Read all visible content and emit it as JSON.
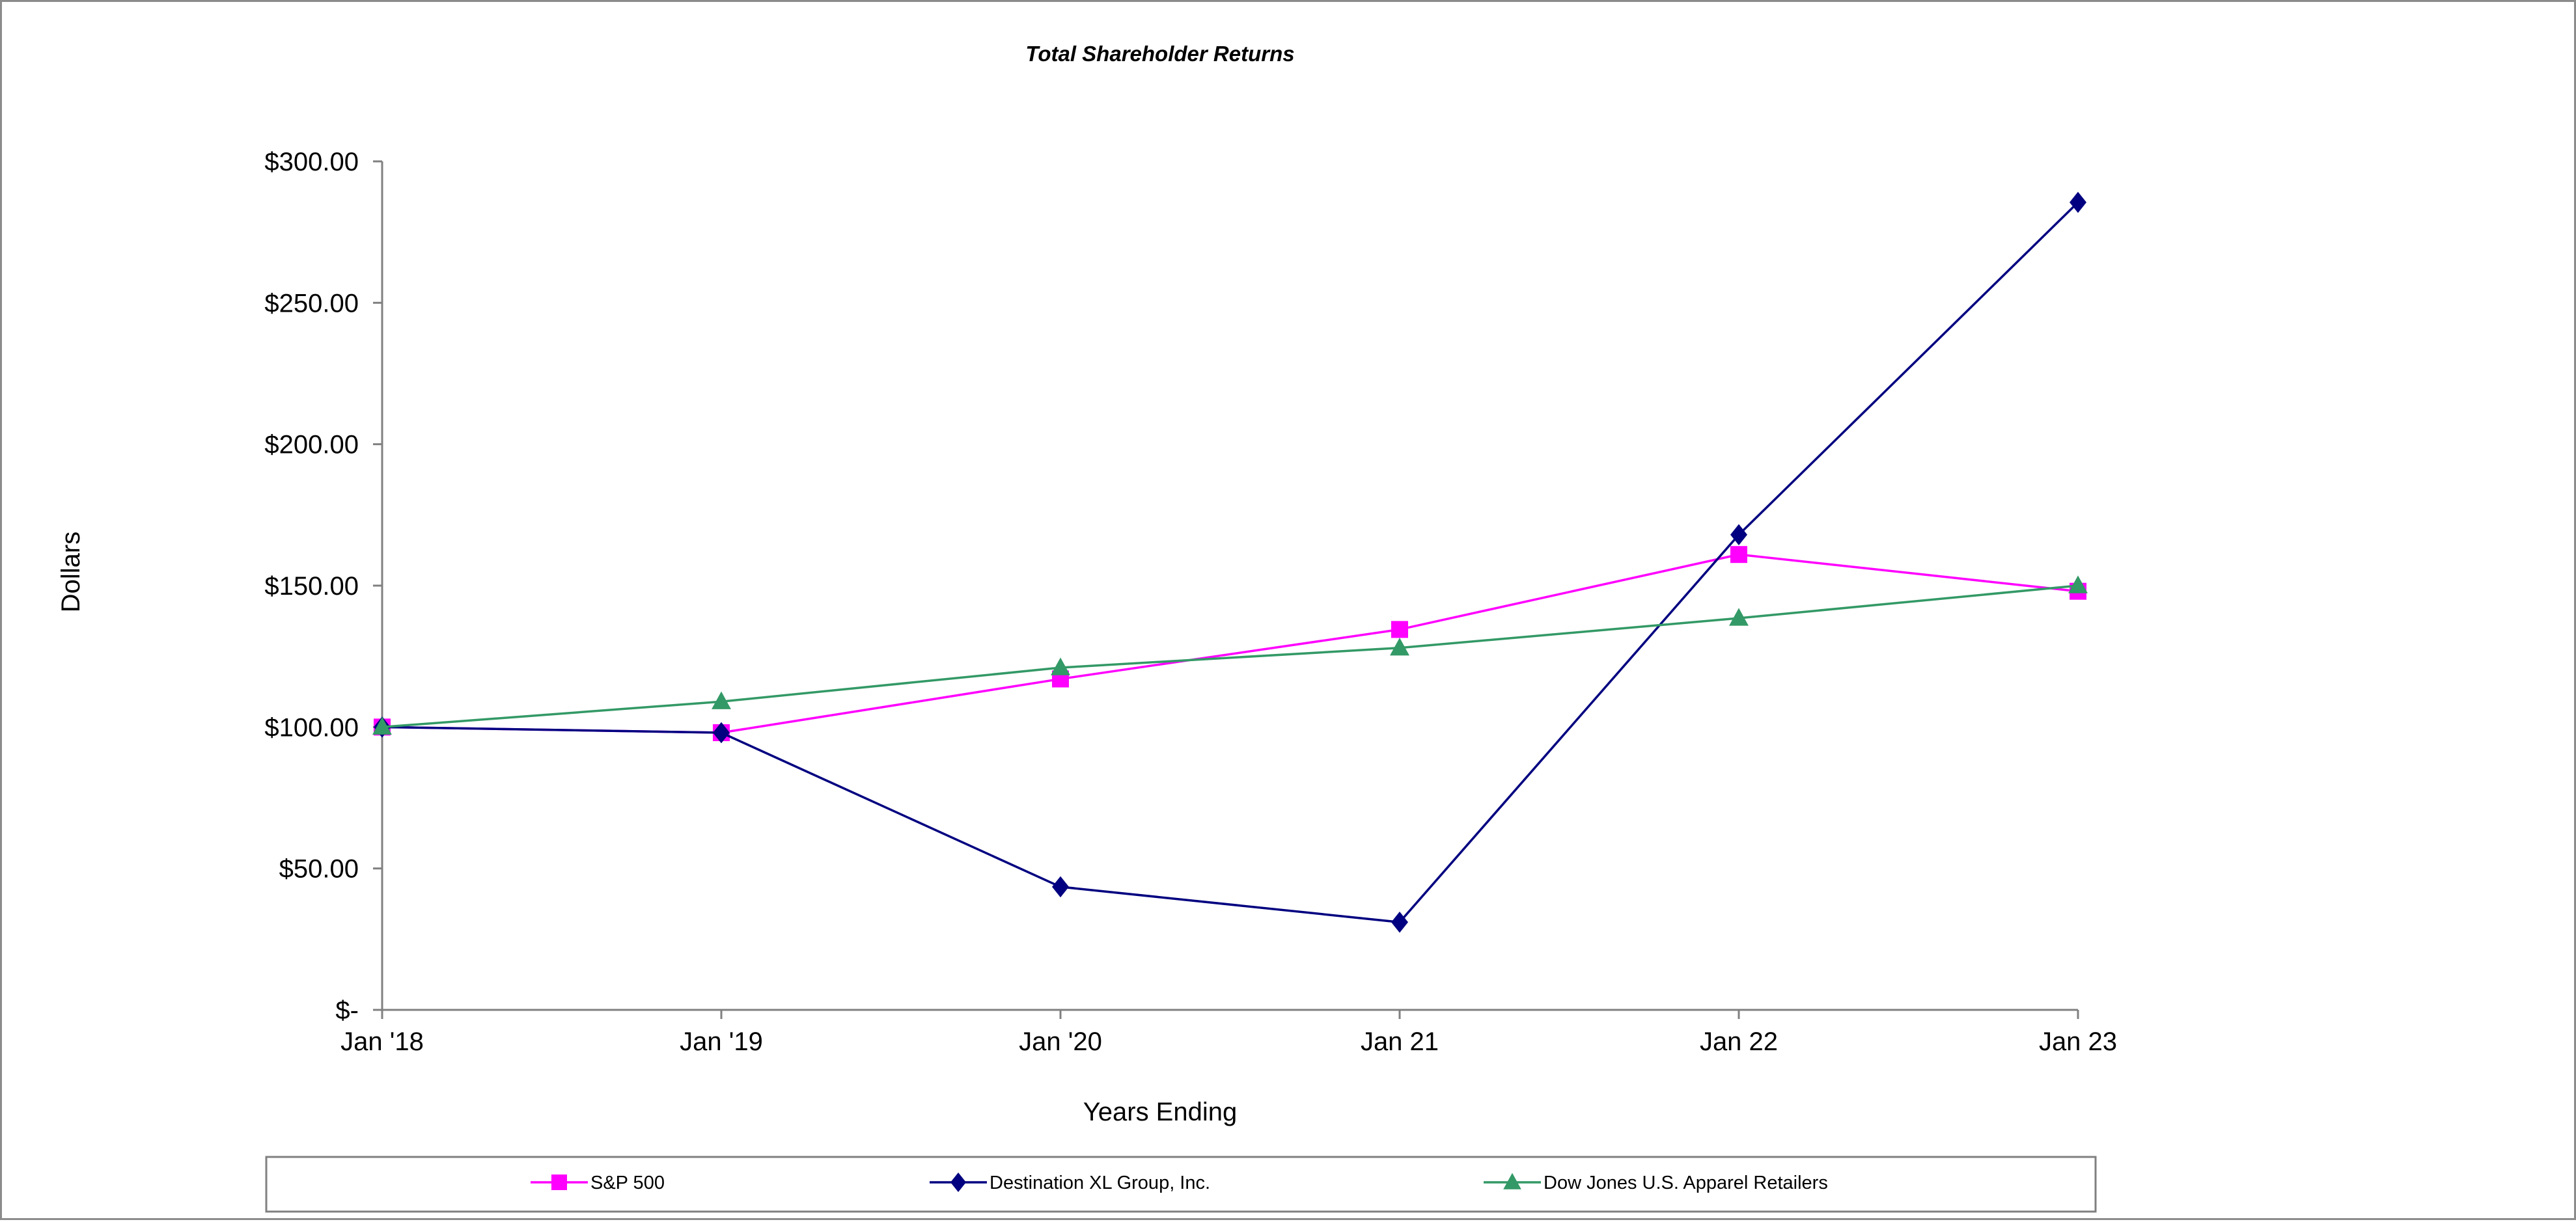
{
  "chart_data": {
    "type": "line",
    "title": "Total Shareholder Returns",
    "xlabel": "Years Ending",
    "ylabel": "Dollars",
    "categories": [
      "Jan '18",
      "Jan '19",
      "Jan '20",
      "Jan 21",
      "Jan 22",
      "Jan 23"
    ],
    "ylim": [
      0,
      300
    ],
    "y_ticks": [
      0,
      50,
      100,
      150,
      200,
      250,
      300
    ],
    "y_tick_labels": [
      "$-",
      "$50.00",
      "$100.00",
      "$150.00",
      "$200.00",
      "$250.00",
      "$300.00"
    ],
    "grid": false,
    "legend_position": "bottom",
    "series": [
      {
        "name": "S&P 500",
        "values": [
          100.0,
          98.0,
          117.0,
          134.5,
          161.0,
          148.0
        ],
        "color": "#ff00ff",
        "marker": "square"
      },
      {
        "name": "Destination XL Group, Inc.",
        "values": [
          100.0,
          98.0,
          43.5,
          31.0,
          168.0,
          285.5
        ],
        "color": "#000080",
        "marker": "diamond"
      },
      {
        "name": "Dow Jones U.S. Apparel Retailers",
        "values": [
          100.0,
          109.0,
          121.0,
          128.0,
          138.5,
          150.0
        ],
        "color": "#339966",
        "marker": "triangle"
      }
    ]
  },
  "colors": {
    "axis": "#808080",
    "frame": "#8c8c8c",
    "legend_border": "#808080"
  }
}
